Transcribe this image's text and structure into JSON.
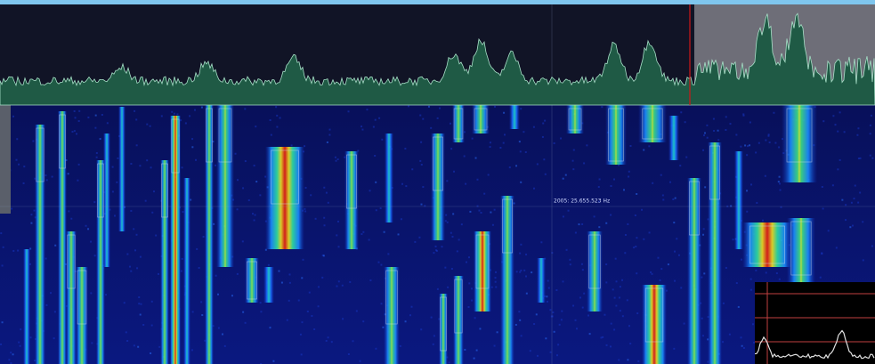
{
  "readout": {
    "text": "2005: 25.655.523 Hz"
  }
}
